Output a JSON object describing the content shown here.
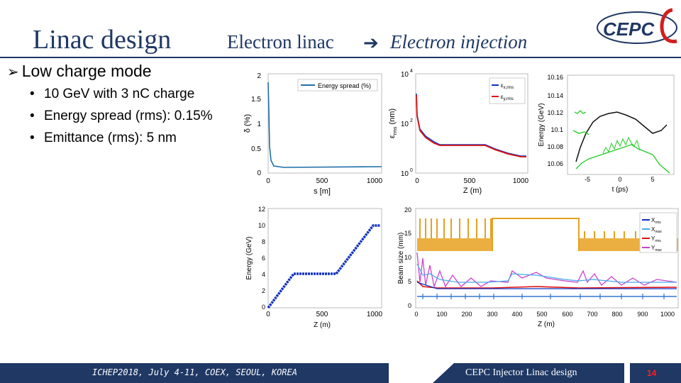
{
  "header": {
    "title": "Linac design",
    "subtitle_left": "Electron linac",
    "subtitle_right": "Electron injection",
    "logo_text": "CEPC"
  },
  "bullets": {
    "main": "Low charge mode",
    "items": [
      "10 GeV with 3 nC charge",
      "Energy spread (rms): 0.15%",
      "Emittance (rms): 5 nm"
    ]
  },
  "plot1": {
    "ylabel": "δ (%)",
    "xlabel": "s [m]",
    "legend": "Energy spread (%)",
    "yticks": [
      "2",
      "1.5",
      "1",
      "0.5",
      "0"
    ],
    "xticks": [
      "0",
      "500",
      "1000"
    ]
  },
  "plot2": {
    "ylabel": "ε",
    "ylabel_sub": "rms",
    "ylabel_unit": "(nm)",
    "xlabel": "Z (m)",
    "legend": [
      "ε",
      "ε"
    ],
    "legend_sub": [
      "x,rms",
      "y,rms"
    ],
    "yticks": [
      "10",
      "10",
      "10"
    ],
    "yticks_exp": [
      "4",
      "2",
      "0"
    ],
    "xticks": [
      "0",
      "500",
      "1000"
    ]
  },
  "plot3": {
    "ylabel": "Energy (GeV)",
    "xlabel": "t (ps)",
    "yticks": [
      "10.16",
      "10.14",
      "10.12",
      "10.1",
      "10.08",
      "10.06"
    ],
    "xticks": [
      "-5",
      "0",
      "5"
    ]
  },
  "plot4": {
    "ylabel": "Energy (GeV)",
    "xlabel": "Z (m)",
    "yticks": [
      "12",
      "10",
      "8",
      "6",
      "4",
      "2",
      "0"
    ],
    "xticks": [
      "0",
      "500",
      "1000"
    ]
  },
  "plot5": {
    "ylabel": "Beam size (mm)",
    "xlabel": "Z (m)",
    "yticks": [
      "20",
      "15",
      "10",
      "5",
      "0"
    ],
    "xticks": [
      "0",
      "100",
      "200",
      "300",
      "400",
      "500",
      "600",
      "700",
      "800",
      "900",
      "1000"
    ],
    "legend": [
      "X",
      "X",
      "Y",
      "Y"
    ],
    "legend_sub": [
      "rms",
      "max",
      "rms",
      "max"
    ]
  },
  "footer": {
    "conference": "ICHEP2018, July 4-11, COEX, SEOUL, KOREA",
    "talk": "CEPC Injector Linac design",
    "page": "14"
  },
  "colors": {
    "navy": "#1f3864",
    "page_number": "#ff2020",
    "energy_spread": "#1f6fa8",
    "emittance": "#dd1111",
    "energy_ramp": "#1030c0",
    "profile_black": "#111111",
    "profile_green": "#22cc22",
    "aperture_orange": "#e8a020"
  }
}
